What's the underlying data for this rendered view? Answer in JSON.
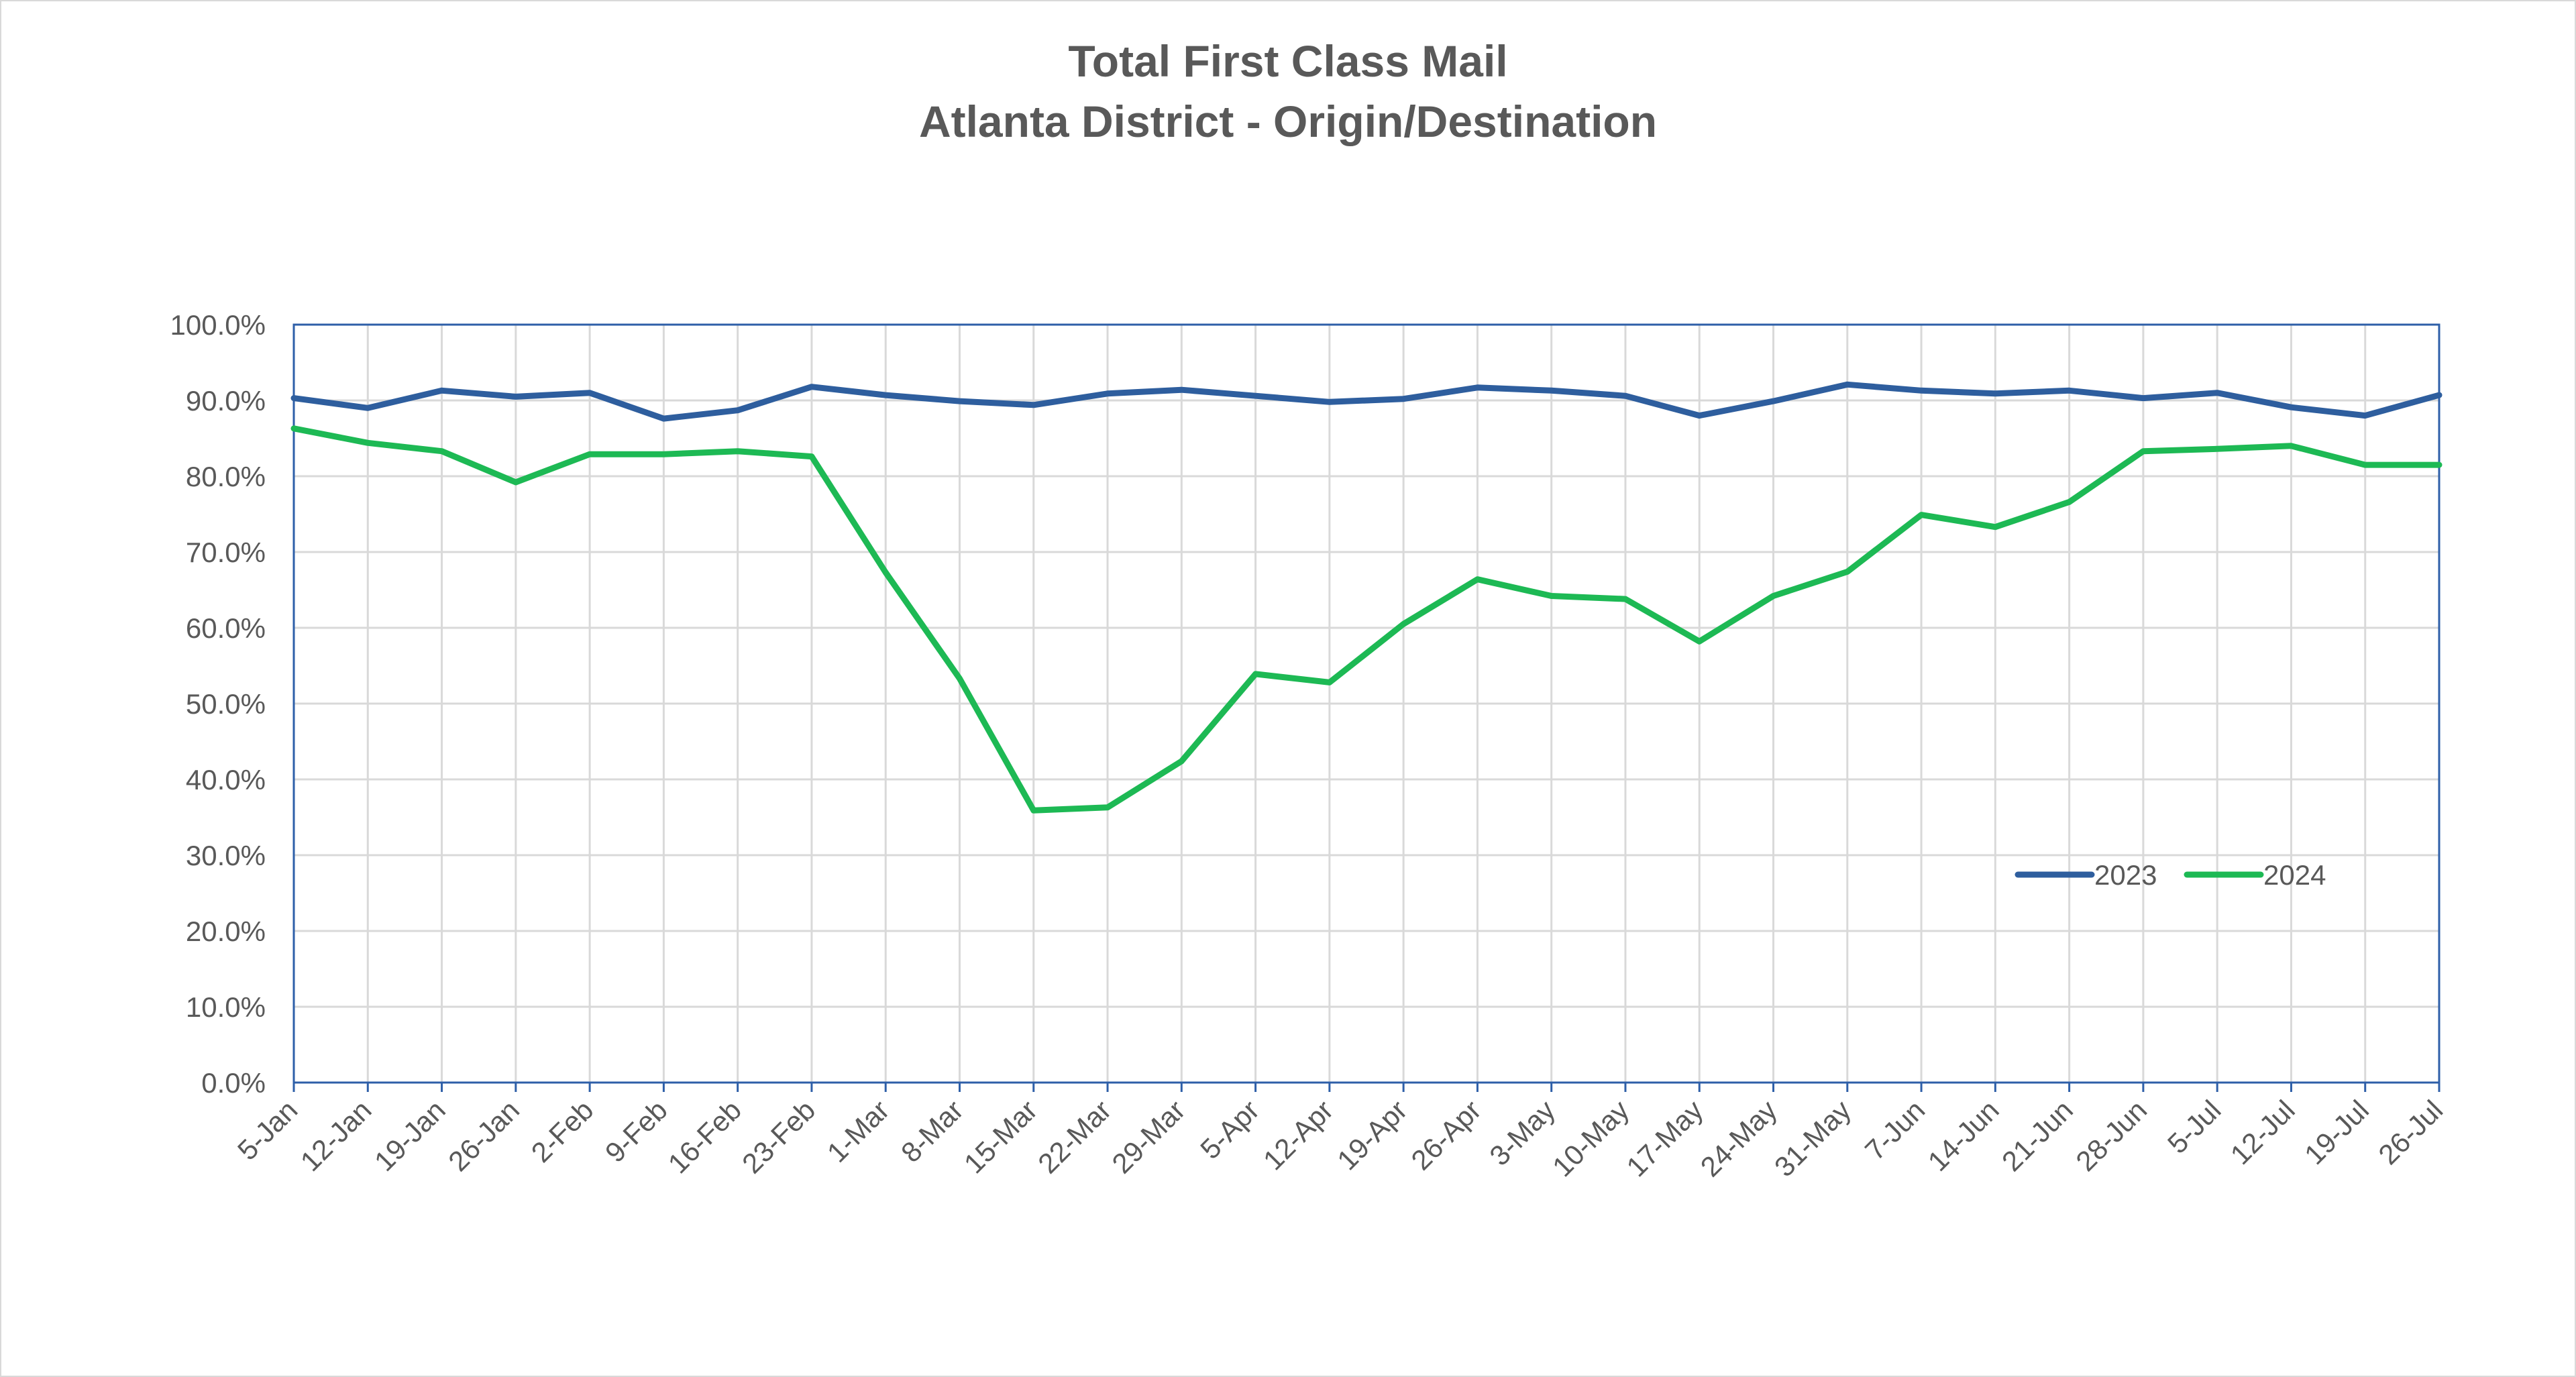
{
  "chart_data": {
    "type": "line",
    "title": "Total First Class Mail",
    "subtitle": "Atlanta District - Origin/Destination",
    "xlabel": "",
    "ylabel": "",
    "ylim": [
      0,
      100
    ],
    "y_tick_labels": [
      "0.0%",
      "10.0%",
      "20.0%",
      "30.0%",
      "40.0%",
      "50.0%",
      "60.0%",
      "70.0%",
      "80.0%",
      "90.0%",
      "100.0%"
    ],
    "y_ticks": [
      0,
      10,
      20,
      30,
      40,
      50,
      60,
      70,
      80,
      90,
      100
    ],
    "grid": true,
    "legend_position": "bottom-right inside plot",
    "categories": [
      "5-Jan",
      "12-Jan",
      "19-Jan",
      "26-Jan",
      "2-Feb",
      "9-Feb",
      "16-Feb",
      "23-Feb",
      "1-Mar",
      "8-Mar",
      "15-Mar",
      "22-Mar",
      "29-Mar",
      "5-Apr",
      "12-Apr",
      "19-Apr",
      "26-Apr",
      "3-May",
      "10-May",
      "17-May",
      "24-May",
      "31-May",
      "7-Jun",
      "14-Jun",
      "21-Jun",
      "28-Jun",
      "5-Jul",
      "12-Jul",
      "19-Jul",
      "26-Jul"
    ],
    "series": [
      {
        "name": "2023",
        "color": "#2e5e9e",
        "values": [
          90.3,
          89.0,
          91.3,
          90.5,
          91.0,
          87.6,
          88.7,
          91.8,
          90.7,
          89.9,
          89.4,
          90.9,
          91.4,
          90.6,
          89.8,
          90.2,
          91.7,
          91.3,
          90.6,
          88.0,
          89.9,
          92.1,
          91.3,
          90.9,
          91.3,
          90.3,
          91.0,
          89.1,
          88.0,
          90.7
        ]
      },
      {
        "name": "2024",
        "color": "#1db954",
        "values": [
          86.3,
          84.4,
          83.3,
          79.2,
          82.9,
          82.9,
          83.3,
          82.6,
          67.3,
          53.3,
          35.9,
          36.3,
          42.4,
          53.9,
          52.8,
          60.5,
          66.4,
          64.2,
          63.8,
          58.2,
          64.2,
          67.4,
          74.9,
          73.3,
          76.6,
          83.3,
          83.6,
          84.0,
          81.5,
          81.5
        ]
      }
    ]
  }
}
